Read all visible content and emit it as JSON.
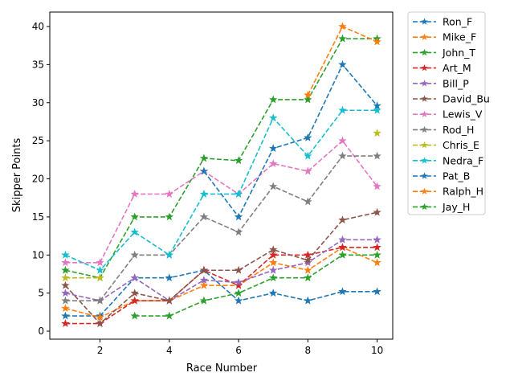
{
  "chart_data": {
    "type": "line",
    "title": "",
    "xlabel": "Race Number",
    "ylabel": "Skipper Points",
    "xlim": [
      0.55,
      10.45
    ],
    "ylim": [
      -1.05,
      41.9
    ],
    "xticks": [
      2,
      4,
      6,
      8,
      10
    ],
    "yticks": [
      0,
      5,
      10,
      15,
      20,
      25,
      30,
      35,
      40
    ],
    "grid": false,
    "legend_placement": "outside-top-right",
    "line_style": "dashed",
    "marker": "star",
    "x": [
      1,
      2,
      3,
      4,
      5,
      6,
      7,
      8,
      9,
      10
    ],
    "series": [
      {
        "name": "Ron_F",
        "color": "#1f77b4",
        "values": [
          2,
          2,
          7,
          7,
          8,
          4,
          5,
          4,
          5.2,
          5.2
        ]
      },
      {
        "name": "Mike_F",
        "color": "#ff7f0e",
        "values": [
          3,
          1.8,
          4,
          4,
          6,
          6,
          9,
          8,
          11,
          9
        ]
      },
      {
        "name": "John_T",
        "color": "#2ca02c",
        "values": [
          8,
          7,
          15,
          15,
          22.7,
          22.4,
          30.4,
          30.4,
          38.4,
          38.4
        ]
      },
      {
        "name": "Art_M",
        "color": "#d62728",
        "values": [
          1,
          1,
          4,
          4,
          8,
          6,
          10,
          10,
          11,
          11
        ]
      },
      {
        "name": "Bill_P",
        "color": "#9467bd",
        "values": [
          5,
          4,
          7,
          4,
          6.7,
          6.4,
          8,
          9,
          12,
          12
        ]
      },
      {
        "name": "David_Bu",
        "color": "#8c564b",
        "values": [
          6,
          1,
          5,
          4,
          8,
          8,
          10.7,
          9.3,
          14.6,
          15.6
        ]
      },
      {
        "name": "Lewis_V",
        "color": "#e377c2",
        "values": [
          9,
          9,
          18,
          18,
          21,
          18,
          22,
          21,
          25,
          19
        ]
      },
      {
        "name": "Rod_H",
        "color": "#7f7f7f",
        "values": [
          4,
          4,
          10,
          10,
          15,
          13,
          19,
          17,
          23,
          23
        ]
      },
      {
        "name": "Chris_E",
        "color": "#bcbd22",
        "values": [
          7,
          7,
          null,
          null,
          null,
          null,
          null,
          null,
          null,
          26
        ]
      },
      {
        "name": "Nedra_F",
        "color": "#17becf",
        "values": [
          10,
          8,
          13,
          10,
          18,
          18,
          28,
          23,
          29,
          29
        ]
      },
      {
        "name": "Pat_B",
        "color": "#1f77b4",
        "values": [
          null,
          null,
          null,
          null,
          21,
          15,
          24,
          25.4,
          35,
          29.6
        ]
      },
      {
        "name": "Ralph_H",
        "color": "#ff7f0e",
        "values": [
          null,
          null,
          null,
          null,
          null,
          null,
          null,
          31,
          40,
          38
        ]
      },
      {
        "name": "Jay_H",
        "color": "#2ca02c",
        "values": [
          null,
          null,
          2,
          2,
          4,
          5,
          7,
          7,
          10,
          10
        ]
      }
    ]
  }
}
